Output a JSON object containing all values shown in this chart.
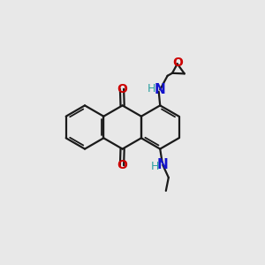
{
  "background_color": "#e8e8e8",
  "bond_color": "#1a1a1a",
  "N_color": "#1414cc",
  "O_color": "#cc0000",
  "H_color": "#2aa0a0",
  "figsize": [
    3.0,
    3.0
  ],
  "dpi": 100,
  "xlim": [
    0,
    10
  ],
  "ylim": [
    0,
    10
  ]
}
